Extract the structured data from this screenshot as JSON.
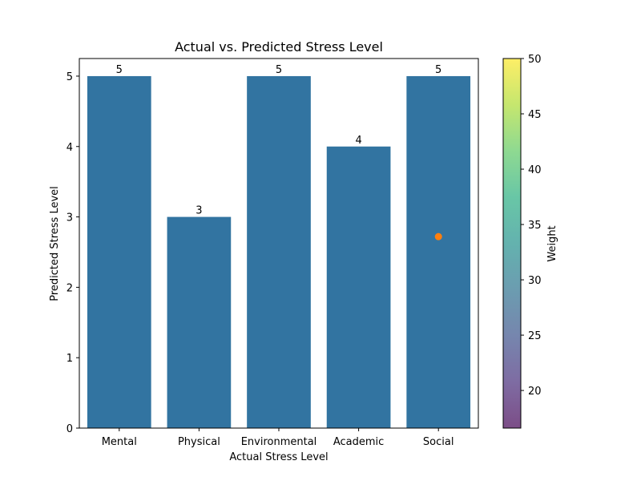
{
  "chart_data": {
    "type": "bar",
    "title": "Actual vs. Predicted Stress Level",
    "xlabel": "Actual Stress Level",
    "ylabel": "Predicted Stress Level",
    "categories": [
      "Mental",
      "Physical",
      "Environmental",
      "Academic",
      "Social"
    ],
    "values": [
      5,
      3,
      5,
      4,
      5
    ],
    "value_labels": [
      "5",
      "3",
      "5",
      "4",
      "5"
    ],
    "bar_color": "#3274a1",
    "ylim": [
      0,
      5.25
    ],
    "yticks": [
      0,
      1,
      2,
      3,
      4,
      5
    ],
    "ytick_labels": [
      "0",
      "1",
      "2",
      "3",
      "4",
      "5"
    ],
    "grid": false,
    "overlay_points": [
      {
        "category": "Social",
        "value": 2.72,
        "color": "#ff7f0e"
      }
    ],
    "colorbar": {
      "label": "Weight",
      "min": 16.6,
      "max": 50,
      "ticks": [
        20,
        25,
        30,
        35,
        40,
        45,
        50
      ],
      "tick_labels": [
        "20",
        "25",
        "30",
        "35",
        "40",
        "45",
        "50"
      ],
      "colormap": "viridis",
      "alpha": 0.7
    }
  }
}
